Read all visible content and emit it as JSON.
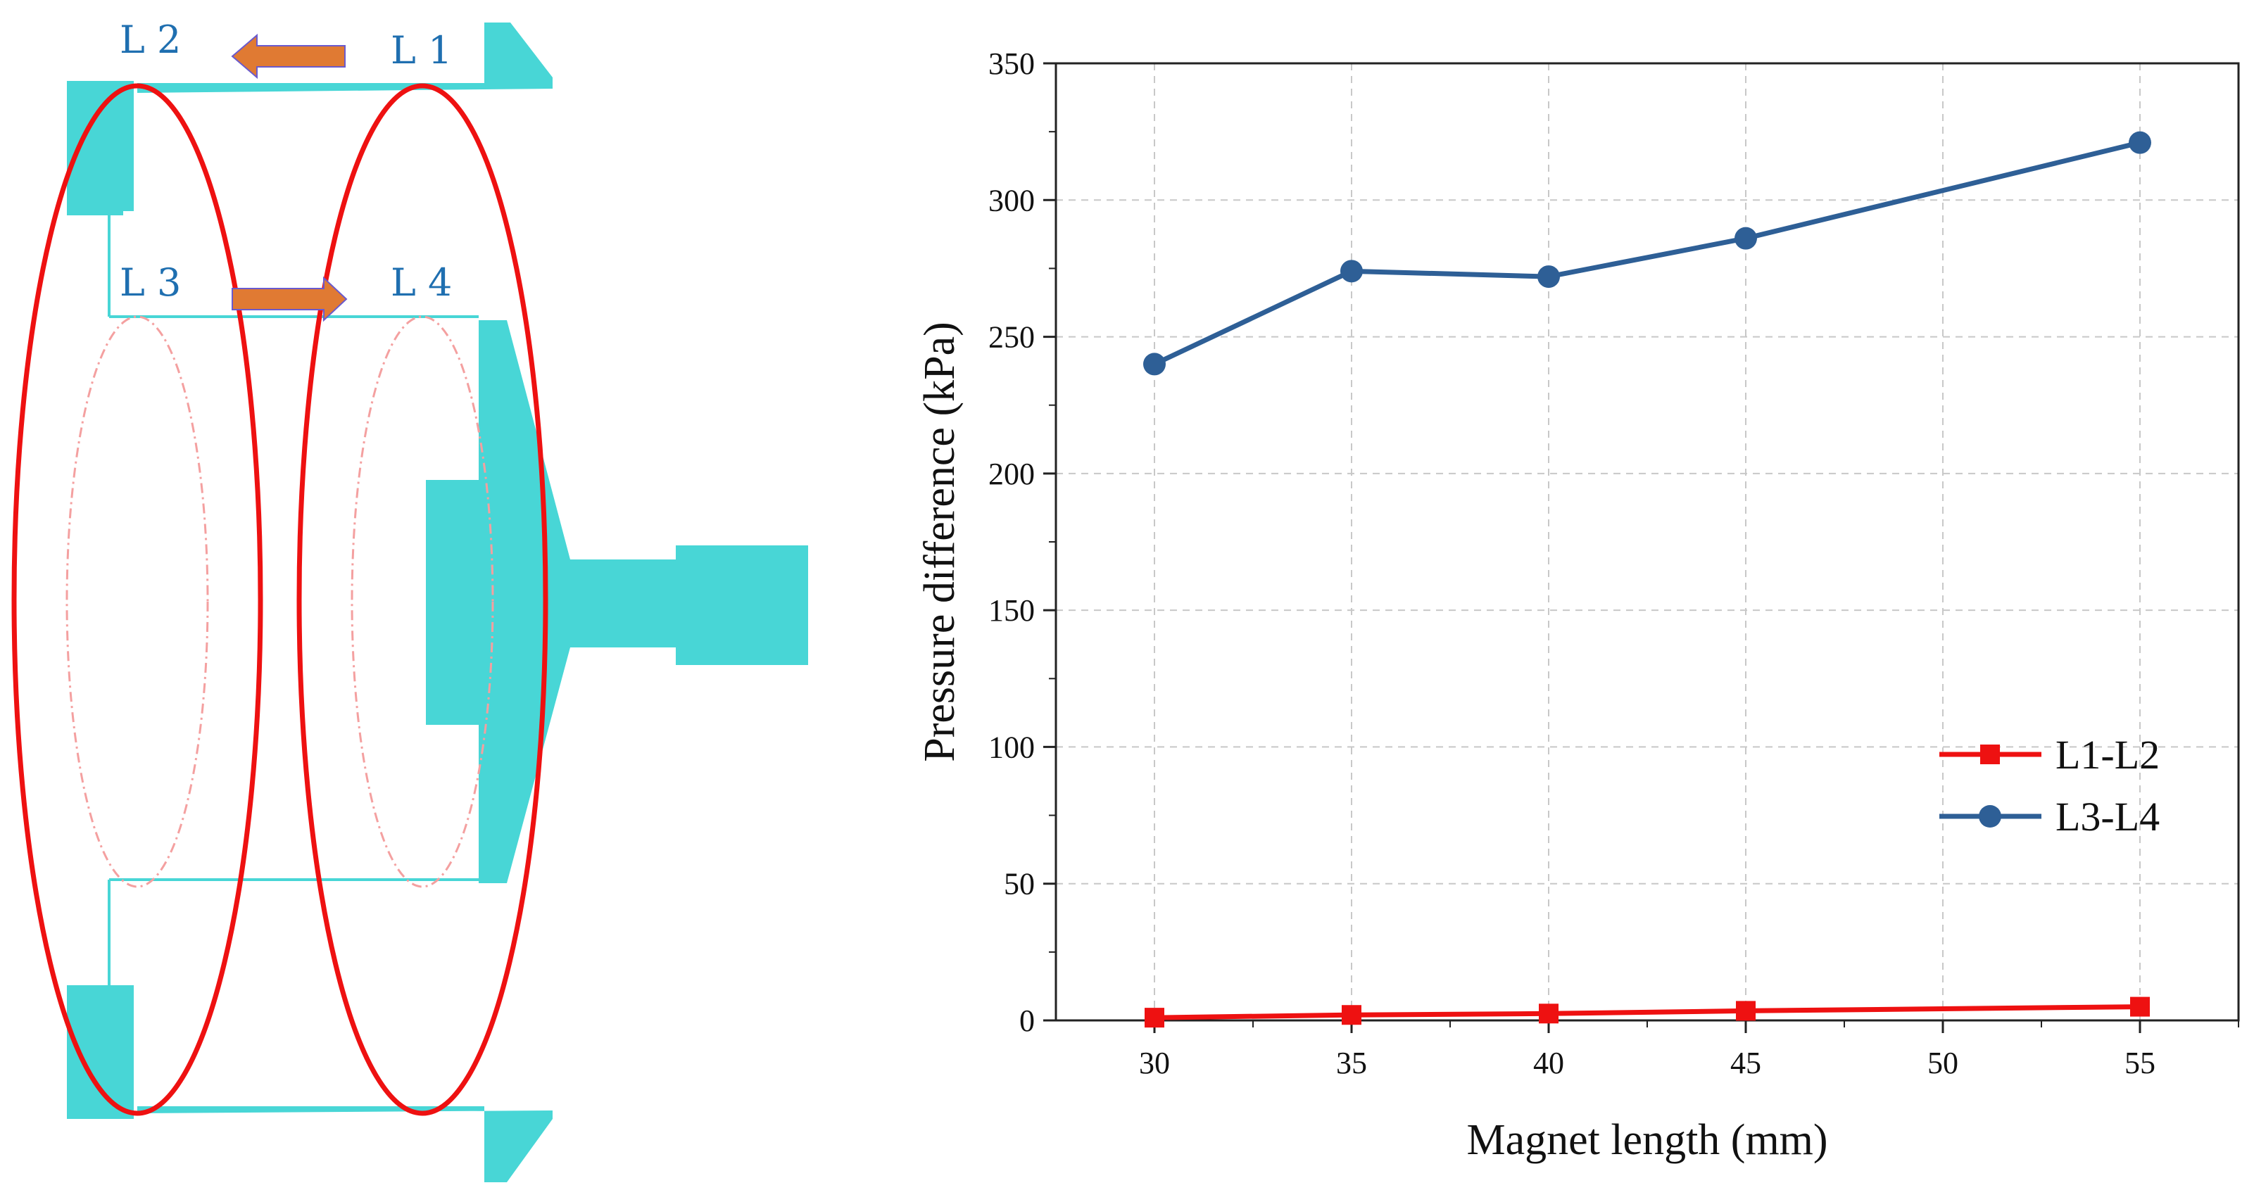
{
  "diagram": {
    "labels": [
      "L 2",
      "L 1",
      "L 3",
      "L 4"
    ],
    "colors": {
      "body": "#48d6d6",
      "ring": "#ee1111",
      "arrow": "#e07a33",
      "label": "#1f6fb0"
    }
  },
  "chart_data": {
    "type": "line",
    "title": "",
    "xlabel": "Magnet length (mm)",
    "ylabel": "Pressure difference (kPa)",
    "xlim": [
      27.5,
      57.5
    ],
    "ylim": [
      0,
      350
    ],
    "xticks": [
      30,
      35,
      40,
      45,
      50,
      55
    ],
    "yticks": [
      0,
      50,
      100,
      150,
      200,
      250,
      300,
      350
    ],
    "grid": true,
    "legend_position": "bottom-right",
    "series": [
      {
        "name": "L1-L2",
        "color": "#ee1111",
        "marker": "square",
        "x": [
          30,
          35,
          40,
          45,
          55
        ],
        "y": [
          1,
          2,
          2.5,
          3.5,
          5
        ]
      },
      {
        "name": "L3-L4",
        "color": "#2e5f96",
        "marker": "circle",
        "x": [
          30,
          35,
          40,
          45,
          55
        ],
        "y": [
          240,
          274,
          272,
          286,
          321
        ]
      }
    ]
  }
}
